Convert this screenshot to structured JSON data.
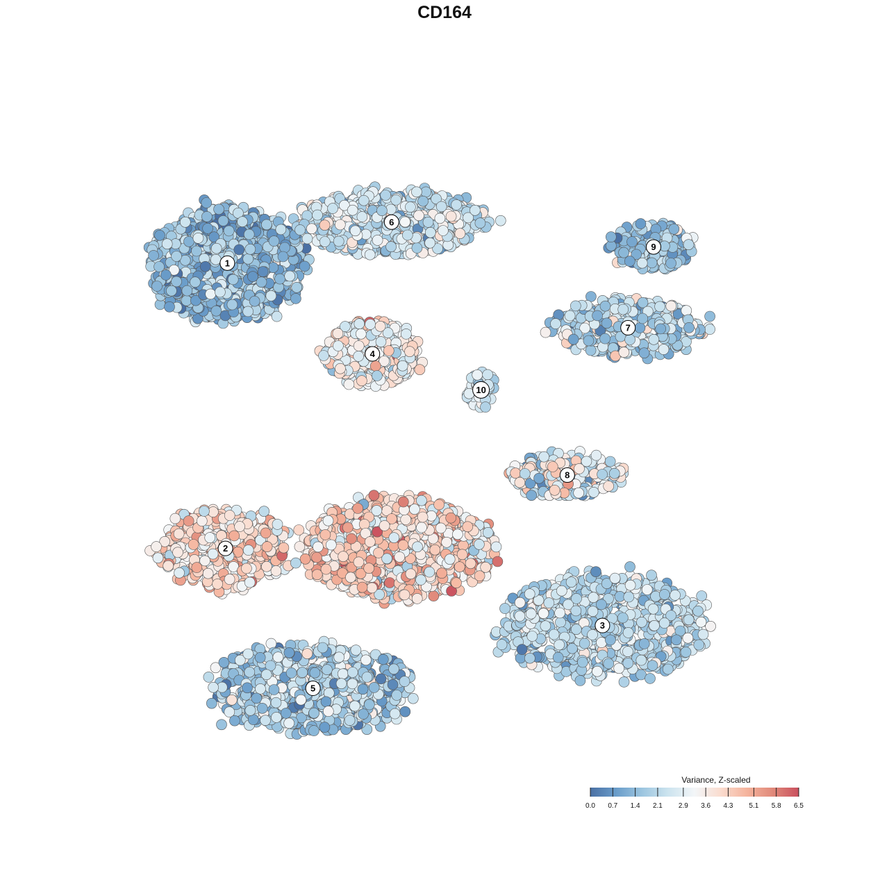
{
  "chart_data": {
    "type": "scatter",
    "title": "CD164",
    "xlabel": "",
    "ylabel": "",
    "x_range": [
      0,
      100
    ],
    "y_range": [
      0,
      100
    ],
    "grid": false,
    "axes": false,
    "legend": {
      "title": "Variance, Z-scaled",
      "placement": "bottom-right",
      "range": [
        0.0,
        6.5
      ],
      "ticks": [
        "0.0",
        "0.7",
        "1.4",
        "2.1",
        "2.9",
        "3.6",
        "4.3",
        "5.1",
        "5.8",
        "6.5"
      ],
      "colors": [
        "#4a70a4",
        "#6a9dca",
        "#9dc6e0",
        "#cde4ef",
        "#f3f6f8",
        "#fadccf",
        "#f5b49d",
        "#e0897a",
        "#c9505e"
      ]
    },
    "clusters": [
      {
        "label": "1",
        "x": 13.3,
        "y": 78.9,
        "sx": 11.5,
        "sy": 8.8,
        "value": 1.5,
        "spread": 0.8,
        "n": 1300
      },
      {
        "label": "6",
        "x": 39.0,
        "y": 85.5,
        "sx": 14.5,
        "sy": 5.0,
        "value": 2.5,
        "spread": 0.8,
        "n": 700
      },
      {
        "label": "9",
        "x": 80.0,
        "y": 81.5,
        "sx": 6.5,
        "sy": 3.8,
        "value": 1.6,
        "spread": 0.7,
        "n": 180
      },
      {
        "label": "7",
        "x": 76.0,
        "y": 68.5,
        "sx": 12.0,
        "sy": 4.5,
        "value": 2.1,
        "spread": 0.8,
        "n": 350
      },
      {
        "label": "4",
        "x": 36.0,
        "y": 64.3,
        "sx": 7.0,
        "sy": 5.0,
        "value": 3.4,
        "spread": 0.8,
        "n": 500
      },
      {
        "label": "10",
        "x": 53.0,
        "y": 58.5,
        "sx": 2.3,
        "sy": 3.0,
        "value": 2.4,
        "spread": 0.6,
        "n": 60
      },
      {
        "label": "8",
        "x": 66.5,
        "y": 44.8,
        "sx": 8.5,
        "sy": 3.5,
        "value": 2.7,
        "spread": 1.2,
        "n": 260
      },
      {
        "label": "2",
        "x": 13.0,
        "y": 33.0,
        "sx": 10.5,
        "sy": 6.5,
        "value": 4.0,
        "spread": 0.9,
        "n": 420
      },
      {
        "label": "3",
        "x": 72.0,
        "y": 20.6,
        "sx": 15.5,
        "sy": 8.5,
        "value": 2.2,
        "spread": 0.7,
        "n": 900
      },
      {
        "label": "5",
        "x": 26.7,
        "y": 10.5,
        "sx": 15.0,
        "sy": 7.0,
        "value": 1.9,
        "spread": 0.8,
        "n": 800
      },
      {
        "label": "",
        "x": 40.0,
        "y": 33.0,
        "sx": 14.0,
        "sy": 8.0,
        "value": 4.0,
        "spread": 1.0,
        "n": 1100
      }
    ]
  }
}
